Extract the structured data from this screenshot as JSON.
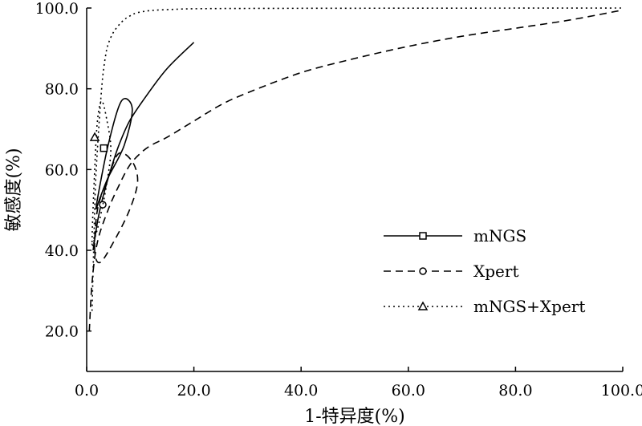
{
  "chart_data": {
    "type": "line",
    "title": "",
    "xlabel": "1-特异度(%)",
    "ylabel": "敏感度(%)",
    "xlim": [
      0,
      100
    ],
    "ylim": [
      10,
      100
    ],
    "x_ticks": [
      "0.0",
      "20.0",
      "40.0",
      "60.0",
      "80.0",
      "100.0"
    ],
    "y_ticks": [
      "20.0",
      "40.0",
      "60.0",
      "80.0",
      "100.0"
    ],
    "grid": false,
    "legend_position": "lower-right",
    "series": [
      {
        "name": "mNGS",
        "line_style": "solid",
        "marker": "square",
        "summary_point": [
          3.2,
          65.3
        ],
        "curve": [
          [
            1.2,
            40
          ],
          [
            2,
            47
          ],
          [
            3,
            53
          ],
          [
            4.5,
            60
          ],
          [
            6,
            66
          ],
          [
            8,
            72
          ],
          [
            11,
            78
          ],
          [
            15,
            85
          ],
          [
            20,
            91.5
          ]
        ],
        "confidence_region": [
          [
            1.8,
            51
          ],
          [
            4,
            66
          ],
          [
            6.5,
            77
          ],
          [
            8.5,
            75
          ],
          [
            7,
            66
          ],
          [
            4,
            58
          ],
          [
            2.5,
            53
          ],
          [
            1.8,
            51
          ]
        ]
      },
      {
        "name": "Xpert",
        "line_style": "dashed",
        "marker": "circle",
        "summary_point": [
          3,
          51.3
        ],
        "curve": [
          [
            0.5,
            20
          ],
          [
            1,
            32
          ],
          [
            2,
            42
          ],
          [
            4,
            50
          ],
          [
            6,
            56
          ],
          [
            8,
            61
          ],
          [
            10,
            64
          ],
          [
            12,
            66
          ],
          [
            15,
            68
          ],
          [
            20,
            72
          ],
          [
            25,
            76
          ],
          [
            30,
            79
          ],
          [
            40,
            84
          ],
          [
            50,
            87.5
          ],
          [
            60,
            90.5
          ],
          [
            70,
            93
          ],
          [
            80,
            95
          ],
          [
            90,
            97
          ],
          [
            100,
            99.5
          ]
        ],
        "confidence_region": [
          [
            1.5,
            40
          ],
          [
            2,
            50
          ],
          [
            4,
            58
          ],
          [
            6,
            64
          ],
          [
            8.5,
            62
          ],
          [
            9.5,
            57
          ],
          [
            8,
            50
          ],
          [
            5,
            42
          ],
          [
            2.5,
            37
          ],
          [
            1.5,
            40
          ]
        ]
      },
      {
        "name": "mNGS+Xpert",
        "line_style": "dotted",
        "marker": "triangle",
        "summary_point": [
          1.5,
          68
        ],
        "curve": [
          [
            1,
            25
          ],
          [
            1.3,
            40
          ],
          [
            1.6,
            55
          ],
          [
            2,
            65
          ],
          [
            2.5,
            75
          ],
          [
            3,
            83
          ],
          [
            3.5,
            88
          ],
          [
            4,
            91
          ],
          [
            5,
            94
          ],
          [
            6.5,
            96.5
          ],
          [
            8,
            98
          ],
          [
            10,
            99
          ],
          [
            15,
            99.6
          ],
          [
            30,
            99.9
          ],
          [
            100,
            100
          ]
        ],
        "confidence_region": [
          [
            1,
            42
          ],
          [
            1.5,
            60
          ],
          [
            2,
            72
          ],
          [
            2.8,
            77
          ],
          [
            3.8,
            72
          ],
          [
            4.5,
            65
          ],
          [
            3.8,
            57
          ],
          [
            2.5,
            48
          ],
          [
            1.5,
            43
          ],
          [
            1,
            42
          ]
        ]
      }
    ]
  }
}
